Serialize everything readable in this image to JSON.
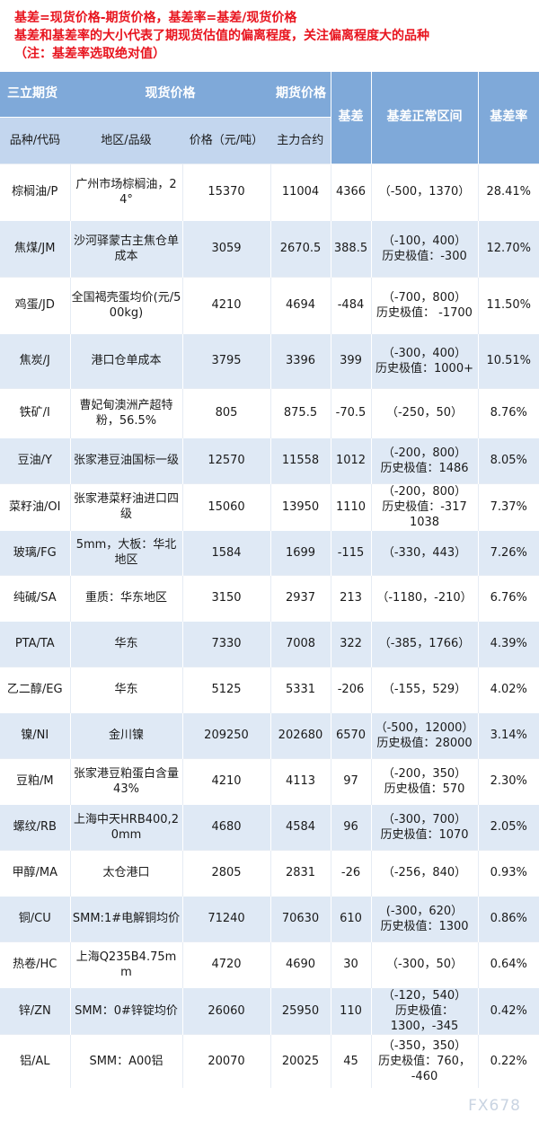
{
  "notes": [
    "基差=现货价格-期货价格，基差率=基差/现货价格",
    "基差和基差率的大小代表了期现货估值的偏离程度，关注偏离程度大的品种",
    "（注：基差率选取绝对值）"
  ],
  "header": {
    "brand": "三立期货",
    "spot_price": "现货价格",
    "futures_price": "期货价格",
    "basis": "基差",
    "normal_range": "基差正常区间",
    "basis_rate": "基差率",
    "col_product": "品种/代码",
    "col_region": "地区/品级",
    "col_price": "价格（元/吨）",
    "col_contract": "主力合约"
  },
  "rows": [
    {
      "code": "棕榈油/P",
      "region": "广州市场棕榈油，24°",
      "spot": "15370",
      "futures": "11004",
      "basis": "4366",
      "range": "（-500，1370）",
      "rate": "28.41%"
    },
    {
      "code": "焦煤/JM",
      "region": "沙河驿蒙古主焦仓单成本",
      "spot": "3059",
      "futures": "2670.5",
      "basis": "388.5",
      "range": "（-100，400）\n历史极值：-300",
      "rate": "12.70%"
    },
    {
      "code": "鸡蛋/JD",
      "region": "全国褐壳蛋均价(元/500kg)",
      "spot": "4210",
      "futures": "4694",
      "basis": "-484",
      "range": "（-700，800）\n历史极值： -1700",
      "rate": "11.50%"
    },
    {
      "code": "焦炭/J",
      "region": "港口仓单成本",
      "spot": "3795",
      "futures": "3396",
      "basis": "399",
      "range": "（-300，400）\n历史极值：1000+",
      "rate": "10.51%"
    },
    {
      "code": "铁矿/I",
      "region": "曹妃甸澳洲产超特粉，56.5%",
      "spot": "805",
      "futures": "875.5",
      "basis": "-70.5",
      "range": "（-250，50）",
      "rate": "8.76%"
    },
    {
      "code": "豆油/Y",
      "region": "张家港豆油国标一级",
      "spot": "12570",
      "futures": "11558",
      "basis": "1012",
      "range": "（-200，800）\n历史极值：1486",
      "rate": "8.05%"
    },
    {
      "code": "菜籽油/OI",
      "region": "张家港菜籽油进口四级",
      "spot": "15060",
      "futures": "13950",
      "basis": "1110",
      "range": "（-200，800）\n历史极值：-317\n1038",
      "rate": "7.37%"
    },
    {
      "code": "玻璃/FG",
      "region": "5mm，大板：华北地区",
      "spot": "1584",
      "futures": "1699",
      "basis": "-115",
      "range": "（-330，443）",
      "rate": "7.26%"
    },
    {
      "code": "纯碱/SA",
      "region": "重质：华东地区",
      "spot": "3150",
      "futures": "2937",
      "basis": "213",
      "range": "（-1180，-210）",
      "rate": "6.76%"
    },
    {
      "code": "PTA/TA",
      "region": "华东",
      "spot": "7330",
      "futures": "7008",
      "basis": "322",
      "range": "（-385，1766）",
      "rate": "4.39%"
    },
    {
      "code": "乙二醇/EG",
      "region": "华东",
      "spot": "5125",
      "futures": "5331",
      "basis": "-206",
      "range": "（-155，529）",
      "rate": "4.02%"
    },
    {
      "code": "镍/NI",
      "region": "金川镍",
      "spot": "209250",
      "futures": "202680",
      "basis": "6570",
      "range": "（-500，12000）\n历史极值：28000",
      "rate": "3.14%"
    },
    {
      "code": "豆粕/M",
      "region": "张家港豆粕蛋白含量43%",
      "spot": "4210",
      "futures": "4113",
      "basis": "97",
      "range": "（-200，350）\n历史极值：570",
      "rate": "2.30%"
    },
    {
      "code": "螺纹/RB",
      "region": "上海中天HRB400,20mm",
      "spot": "4680",
      "futures": "4584",
      "basis": "96",
      "range": "（-300，700）\n历史极值：1070",
      "rate": "2.05%"
    },
    {
      "code": "甲醇/MA",
      "region": "太仓港口",
      "spot": "2805",
      "futures": "2831",
      "basis": "-26",
      "range": "（-256，840）",
      "rate": "0.93%"
    },
    {
      "code": "铜/CU",
      "region": "SMM:1#电解铜均价",
      "spot": "71240",
      "futures": "70630",
      "basis": "610",
      "range": "(-300，620）\n历史极值：1300",
      "rate": "0.86%"
    },
    {
      "code": "热卷/HC",
      "region": "上海Q235B4.75mm",
      "spot": "4720",
      "futures": "4690",
      "basis": "30",
      "range": "（-300，50）",
      "rate": "0.64%"
    },
    {
      "code": "锌/ZN",
      "region": "SMM：0#锌锭均价",
      "spot": "26060",
      "futures": "25950",
      "basis": "110",
      "range": "（-120，540）\n历史极值：\n1300，-345",
      "rate": "0.42%"
    },
    {
      "code": "铝/AL",
      "region": "SMM：A00铝",
      "spot": "20070",
      "futures": "20025",
      "basis": "45",
      "range": "（-350，350）\n历史极值：760，\n-460",
      "rate": "0.22%"
    }
  ],
  "watermark": "FX678",
  "colors": {
    "note_text": "#e8141e",
    "header_bg": "#7fa9d9",
    "subheader_bg": "#c3d6ee",
    "stripe": "#dfe9f5"
  }
}
